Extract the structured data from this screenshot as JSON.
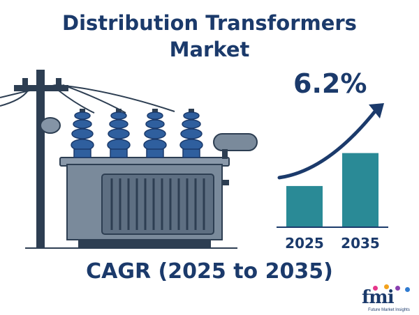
{
  "title_line1": "Distribution Transformers",
  "title_line2": "Market",
  "cagr_value": "6.2%",
  "cagr_label": "CAGR (2025 to 2035)",
  "logo": {
    "letters": "fmi",
    "caption": "Future Market Insights"
  },
  "colors": {
    "navy": "#1b3a6b",
    "bar": "#2a8a96",
    "transformer": "#7a8a9b",
    "bushing": "#2f5f9e"
  },
  "chart_data": {
    "type": "bar",
    "categories": [
      "2025",
      "2035"
    ],
    "values": [
      1.0,
      1.8
    ],
    "title": "",
    "xlabel": "",
    "ylabel": "",
    "ylim": [
      0,
      2.2
    ],
    "grid": false,
    "annotation": "6.2%"
  }
}
